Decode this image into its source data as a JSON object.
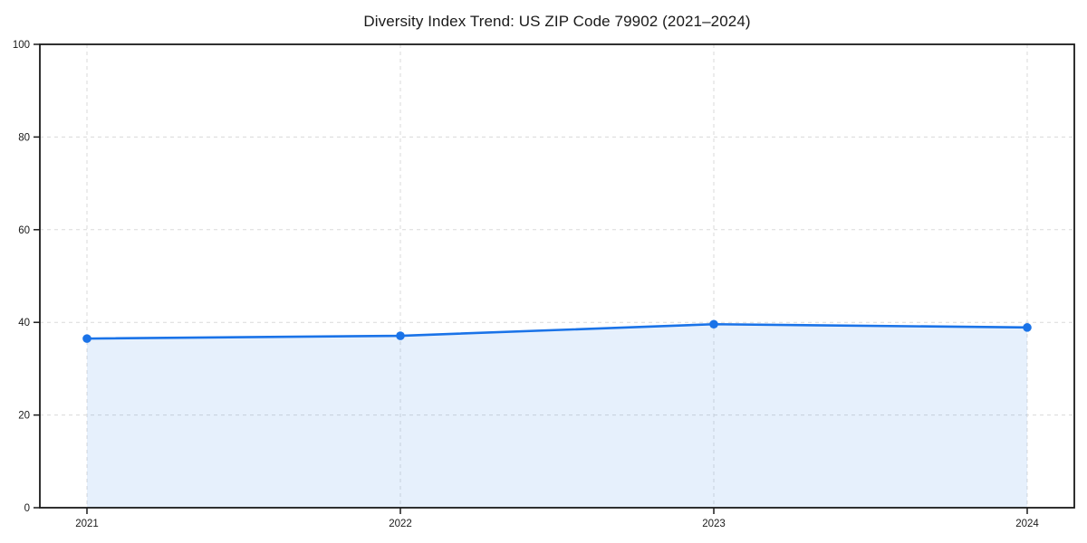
{
  "figure": {
    "background_color": "#ffffff"
  },
  "chart_data": {
    "type": "area",
    "title": "Diversity Index Trend: US ZIP Code 79902 (2021–2024)",
    "x": [
      "2021",
      "2022",
      "2023",
      "2024"
    ],
    "values": [
      36.5,
      37.1,
      39.6,
      38.9
    ],
    "xlabel": "",
    "ylabel": "",
    "ylim": [
      0,
      100
    ],
    "yticks": [
      0,
      20,
      40,
      60,
      80,
      100
    ],
    "grid": true,
    "grid_style": "dashed",
    "legend": "none",
    "line_color": "#1a73e8",
    "fill_opacity": 0.11,
    "marker": "circle",
    "axis_color": "#1a1a1a",
    "grid_color": "#dadada",
    "text_color": "#1a1a1a"
  }
}
